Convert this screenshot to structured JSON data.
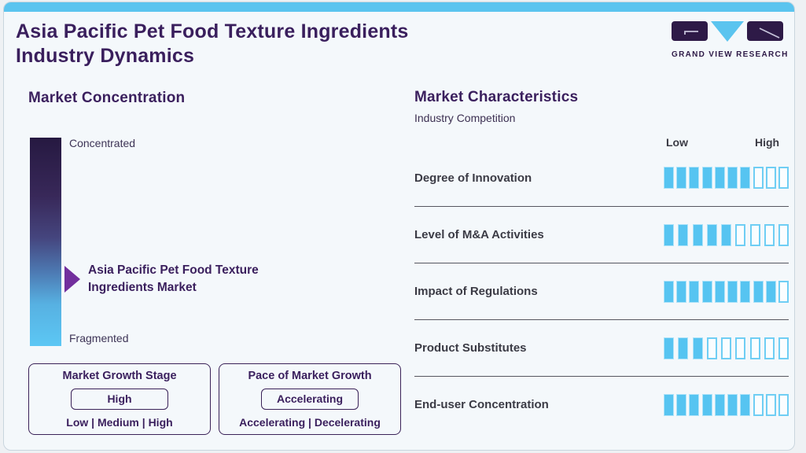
{
  "colors": {
    "accent_blue": "#5bc4ef",
    "dark_purple": "#3a1f5d",
    "arrow_purple": "#722f9d",
    "gradient_top": "#261941",
    "gradient_bottom": "#5cc7f4",
    "segment_filled": "#56c4f1",
    "segment_empty_border": "#6fcef4",
    "text_dark": "#3b3b45"
  },
  "header": {
    "title_lines": [
      "Asia Pacific Pet Food Texture Ingredients",
      "Industry Dynamics"
    ],
    "logo_text": "GRAND VIEW RESEARCH"
  },
  "market_concentration": {
    "title": "Market Concentration",
    "scale_top": "Concentrated",
    "scale_bottom": "Fragmented",
    "marker_lines": [
      "Asia Pacific Pet Food Texture",
      "Ingredients Market"
    ]
  },
  "growth_stage_box": {
    "title": "Market Growth Stage",
    "value": "High",
    "options": "Low | Medium | High"
  },
  "pace_box": {
    "title": "Pace of Market Growth",
    "value": "Accelerating",
    "options": "Accelerating | Decelerating"
  },
  "market_characteristics": {
    "title": "Market Characteristics",
    "subtitle": "Industry Competition",
    "scale_low": "Low",
    "scale_high": "High",
    "rows": [
      {
        "label": "Degree of Innovation",
        "filled": 7,
        "total": 10
      },
      {
        "label": "Level of M&A Activities",
        "filled": 5,
        "total": 9
      },
      {
        "label": "Impact of Regulations",
        "filled": 9,
        "total": 10
      },
      {
        "label": "Product Substitutes",
        "filled": 3,
        "total": 9
      },
      {
        "label": "End-user Concentration",
        "filled": 7,
        "total": 10
      }
    ]
  },
  "chart_data": {
    "type": "bar",
    "title": "Market Characteristics - Industry Competition",
    "categories": [
      "Degree of Innovation",
      "Level of M&A Activities",
      "Impact of Regulations",
      "Product Substitutes",
      "End-user Concentration"
    ],
    "values": [
      7,
      5,
      9,
      3,
      7
    ],
    "segment_totals": [
      10,
      9,
      10,
      9,
      10
    ],
    "scale_labels": [
      "Low",
      "High"
    ],
    "legend_position": "none",
    "annotations": {
      "market_concentration_marker": "Asia Pacific Pet Food Texture Ingredients Market",
      "market_concentration_scale": [
        "Concentrated",
        "Fragmented"
      ],
      "market_growth_stage": "High",
      "pace_of_market_growth": "Accelerating"
    }
  }
}
